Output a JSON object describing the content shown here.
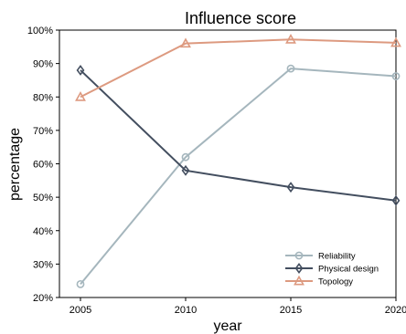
{
  "chart_data": {
    "type": "line",
    "title": "Influence score",
    "xlabel": "year",
    "ylabel": "percentage",
    "x": [
      2005,
      2010,
      2015,
      2020
    ],
    "x_ticks": [
      "2005",
      "2010",
      "2015",
      "2020"
    ],
    "xlim": [
      2004,
      2020
    ],
    "ylim": [
      20,
      100
    ],
    "y_ticks": [
      20,
      30,
      40,
      50,
      60,
      70,
      80,
      90,
      100
    ],
    "y_tick_labels": [
      "20%",
      "30%",
      "40%",
      "50%",
      "60%",
      "70%",
      "80%",
      "90%",
      "100%"
    ],
    "grid": false,
    "legend_position": "bottom-right",
    "series": [
      {
        "name": "Reliability",
        "values": [
          24,
          62,
          88.5,
          86.2
        ],
        "color": "#a5b6bd",
        "marker": "circle"
      },
      {
        "name": "Physical design",
        "values": [
          88,
          58,
          53,
          49
        ],
        "color": "#434e5f",
        "marker": "diamond"
      },
      {
        "name": "Topology",
        "values": [
          80,
          96,
          97.2,
          96.2
        ],
        "color": "#dd9a80",
        "marker": "triangle"
      }
    ]
  }
}
